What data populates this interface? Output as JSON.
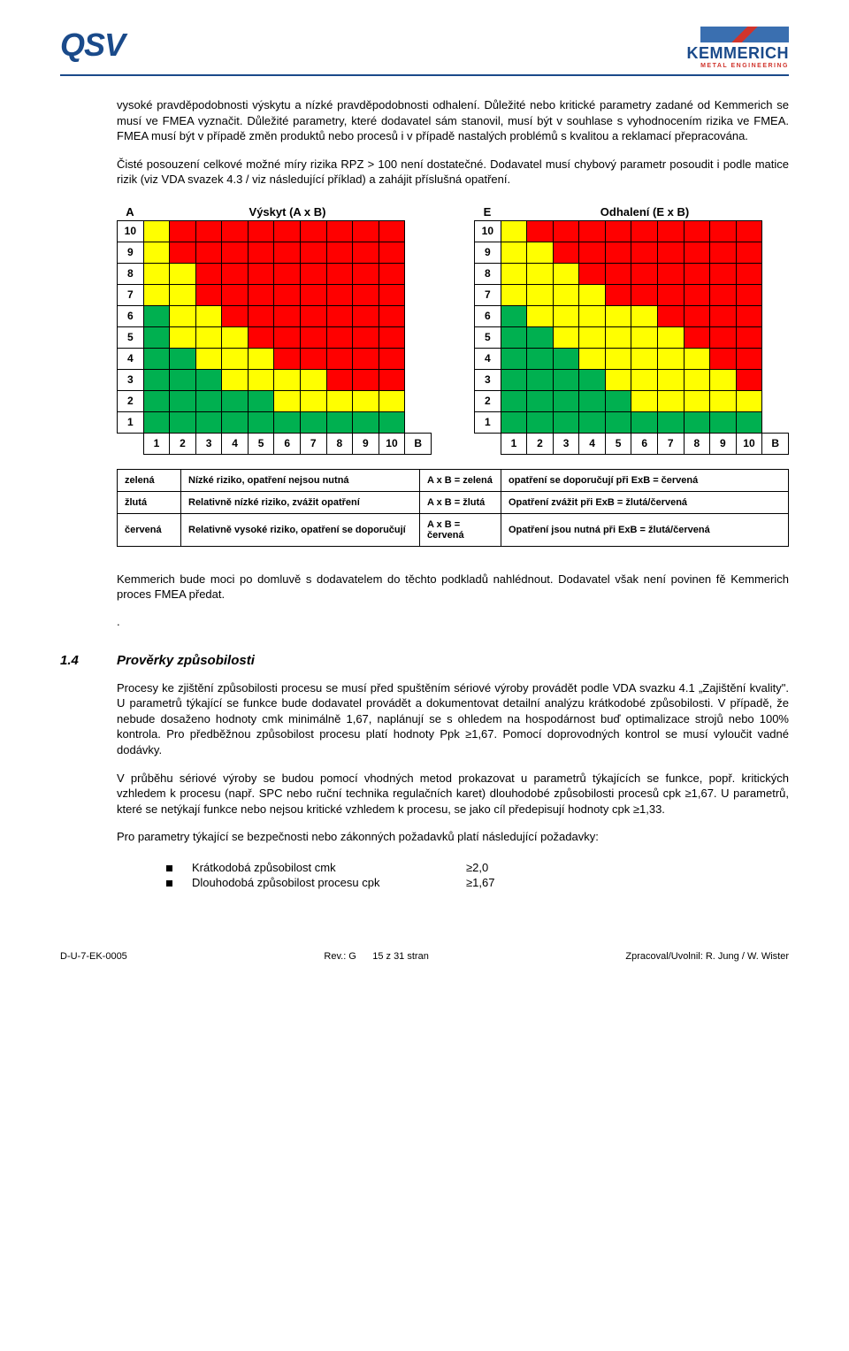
{
  "header": {
    "qsv": "QSV",
    "logo_name": "KEMMERICH",
    "logo_sub": "METAL ENGINEERING"
  },
  "paragraphs": {
    "p1": "vysoké pravděpodobnosti výskytu a nízké pravděpodobnosti odhalení. Důležité nebo kritické parametry zadané od Kemmerich se musí ve FMEA vyznačit. Důležité parametry, které dodavatel sám stanovil, musí být v souhlase s vyhodnocením rizika ve FMEA. FMEA musí být v případě změn produktů nebo procesů i v případě nastalých problémů s kvalitou a reklamací přepracována.",
    "p2": "Čisté posouzení celkové možné míry rizika RPZ > 100 není dostatečné. Dodavatel musí chybový parametr posoudit i podle matice rizik (viz VDA svazek 4.3 / viz následující příklad) a zahájit příslušná opatření.",
    "p3": "Kemmerich bude moci po domluvě s dodavatelem do těchto podkladů nahlédnout. Dodavatel však není povinen fě Kemmerich proces FMEA předat.",
    "p4": "Procesy ke zjištění způsobilosti procesu se musí před spuštěním sériové výroby provádět podle VDA svazku 4.1 „Zajištění kvality\". U parametrů týkající se funkce bude dodavatel provádět a dokumentovat detailní analýzu krátkodobé způsobilosti. V případě, že nebude dosaženo hodnoty cmk minimálně 1,67, naplánují se s ohledem na hospodárnost buď optimalizace strojů nebo 100% kontrola. Pro předběžnou způsobilost procesu platí hodnoty Ppk ≥1,67. Pomocí doprovodných kontrol se musí vyloučit vadné dodávky.",
    "p5": "V průběhu sériové výroby se budou pomocí vhodných metod prokazovat u parametrů týkajících se funkce, popř. kritických vzhledem k procesu (např. SPC nebo ruční technika regulačních karet) dlouhodobé způsobilosti procesů cpk  ≥1,67. U parametrů, které se netýkají funkce nebo nejsou kritické vzhledem k procesu, se jako cíl předepisují hodnoty cpk ≥1,33.",
    "p6": "Pro parametry týkající se bezpečnosti nebo zákonných požadavků platí následující požadavky:"
  },
  "section": {
    "num": "1.4",
    "title": "Prověrky způsobilosti"
  },
  "matrix1": {
    "corner": "A",
    "title": "Výskyt (A x B)",
    "b_label": "B",
    "y_labels": [
      "10",
      "9",
      "8",
      "7",
      "6",
      "5",
      "4",
      "3",
      "2",
      "1"
    ],
    "x_labels": [
      "1",
      "2",
      "3",
      "4",
      "5",
      "6",
      "7",
      "8",
      "9",
      "10"
    ],
    "colors": {
      "g": "#00b050",
      "y": "#ffff00",
      "r": "#ff0000"
    },
    "cells": [
      [
        "y",
        "r",
        "r",
        "r",
        "r",
        "r",
        "r",
        "r",
        "r",
        "r"
      ],
      [
        "y",
        "r",
        "r",
        "r",
        "r",
        "r",
        "r",
        "r",
        "r",
        "r"
      ],
      [
        "y",
        "y",
        "r",
        "r",
        "r",
        "r",
        "r",
        "r",
        "r",
        "r"
      ],
      [
        "y",
        "y",
        "r",
        "r",
        "r",
        "r",
        "r",
        "r",
        "r",
        "r"
      ],
      [
        "g",
        "y",
        "y",
        "r",
        "r",
        "r",
        "r",
        "r",
        "r",
        "r"
      ],
      [
        "g",
        "y",
        "y",
        "y",
        "r",
        "r",
        "r",
        "r",
        "r",
        "r"
      ],
      [
        "g",
        "g",
        "y",
        "y",
        "y",
        "r",
        "r",
        "r",
        "r",
        "r"
      ],
      [
        "g",
        "g",
        "g",
        "y",
        "y",
        "y",
        "y",
        "r",
        "r",
        "r"
      ],
      [
        "g",
        "g",
        "g",
        "g",
        "g",
        "y",
        "y",
        "y",
        "y",
        "y"
      ],
      [
        "g",
        "g",
        "g",
        "g",
        "g",
        "g",
        "g",
        "g",
        "g",
        "g"
      ]
    ]
  },
  "matrix2": {
    "corner": "E",
    "title": "Odhalení (E x B)",
    "b_label": "B",
    "y_labels": [
      "10",
      "9",
      "8",
      "7",
      "6",
      "5",
      "4",
      "3",
      "2",
      "1"
    ],
    "x_labels": [
      "1",
      "2",
      "3",
      "4",
      "5",
      "6",
      "7",
      "8",
      "9",
      "10"
    ],
    "colors": {
      "g": "#00b050",
      "y": "#ffff00",
      "r": "#ff0000"
    },
    "cells": [
      [
        "y",
        "r",
        "r",
        "r",
        "r",
        "r",
        "r",
        "r",
        "r",
        "r"
      ],
      [
        "y",
        "y",
        "r",
        "r",
        "r",
        "r",
        "r",
        "r",
        "r",
        "r"
      ],
      [
        "y",
        "y",
        "y",
        "r",
        "r",
        "r",
        "r",
        "r",
        "r",
        "r"
      ],
      [
        "y",
        "y",
        "y",
        "y",
        "r",
        "r",
        "r",
        "r",
        "r",
        "r"
      ],
      [
        "g",
        "y",
        "y",
        "y",
        "y",
        "y",
        "r",
        "r",
        "r",
        "r"
      ],
      [
        "g",
        "g",
        "y",
        "y",
        "y",
        "y",
        "y",
        "r",
        "r",
        "r"
      ],
      [
        "g",
        "g",
        "g",
        "y",
        "y",
        "y",
        "y",
        "y",
        "r",
        "r"
      ],
      [
        "g",
        "g",
        "g",
        "g",
        "y",
        "y",
        "y",
        "y",
        "y",
        "r"
      ],
      [
        "g",
        "g",
        "g",
        "g",
        "g",
        "y",
        "y",
        "y",
        "y",
        "y"
      ],
      [
        "g",
        "g",
        "g",
        "g",
        "g",
        "g",
        "g",
        "g",
        "g",
        "g"
      ]
    ]
  },
  "legend": {
    "rows": [
      {
        "c": "zelená",
        "t": "Nízké riziko, opatření nejsou nutná",
        "k": "A x B = zelená",
        "v": "opatření se doporučují  při ExB = červená"
      },
      {
        "c": "žlutá",
        "t": "Relativně nízké riziko, zvážit opatření",
        "k": "A x B = žlutá",
        "v": "Opatření zvážit při  ExB = žlutá/červená"
      },
      {
        "c": "červená",
        "t": "Relativně vysoké riziko, opatření se doporučují",
        "k": "A x B = červená",
        "v": "Opatření jsou nutná při  ExB = žlutá/červená"
      }
    ]
  },
  "bullets": [
    {
      "label": "Krátkodobá způsobilost cmk",
      "val": "≥2,0"
    },
    {
      "label": "Dlouhodobá způsobilost procesu cpk",
      "val": "≥1,67"
    }
  ],
  "footer": {
    "left": "D-U-7-EK-0005",
    "center_prefix": "Rev.: G",
    "center_pages": "15 z 31 stran",
    "right": "Zpracoval/Uvolnil: R. Jung / W. Wister"
  }
}
